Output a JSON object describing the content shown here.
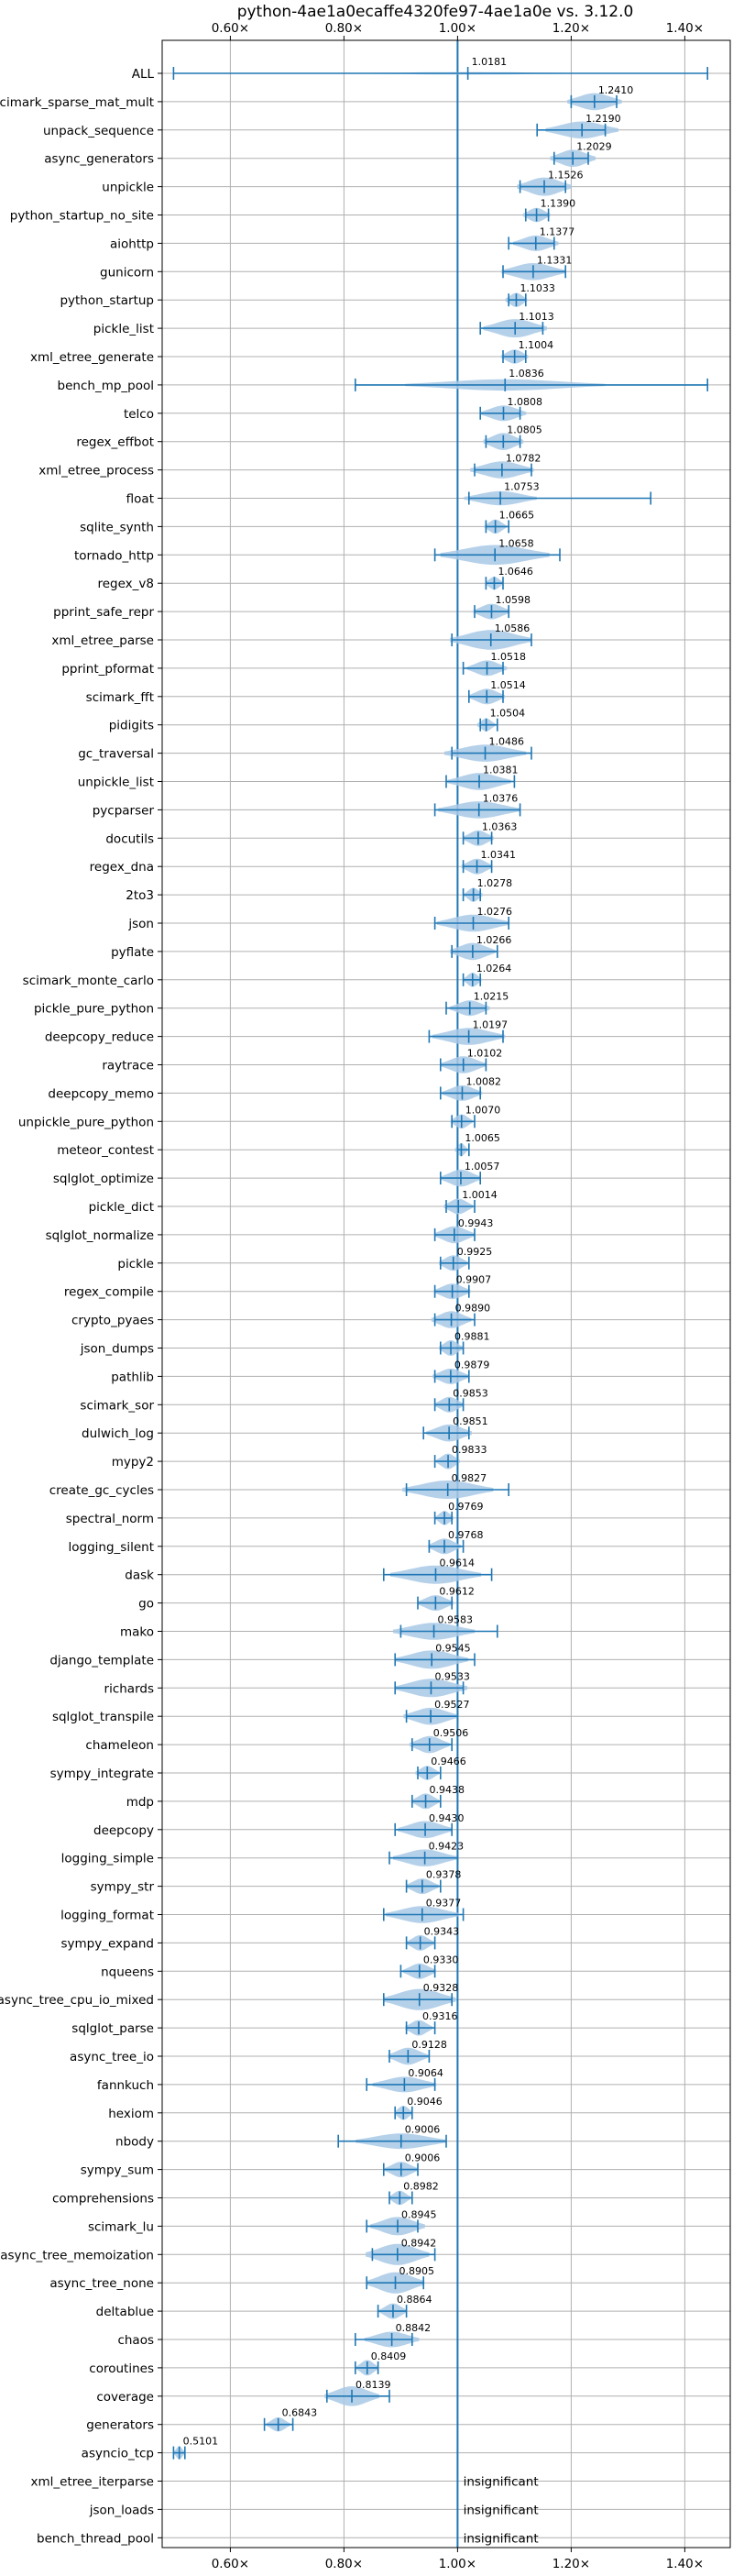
{
  "chart_data": {
    "type": "violin",
    "title": "python-4ae1a0ecaffe4320fe97-4ae1a0e vs. 3.12.0",
    "xlabel": "",
    "ylabel": "",
    "xlim": [
      0.48,
      1.48
    ],
    "xticks": [
      0.6,
      0.8,
      1.0,
      1.2,
      1.4
    ],
    "xtick_labels": [
      "0.60×",
      "0.80×",
      "1.00×",
      "1.20×",
      "1.40×"
    ],
    "tick_labels_on": [
      "top",
      "bottom"
    ],
    "grid": true,
    "reference_line": 1.0,
    "colors": {
      "line": "#1f77b4",
      "fill": "#a8c9e6",
      "grid": "#b0b0b0"
    },
    "insignificant_label": "insignificant",
    "rows": [
      {
        "name": "ALL",
        "value": 1.0181,
        "label": "1.0181",
        "min": 0.5,
        "max": 1.44,
        "width": 0.09,
        "spread": 0.13
      },
      {
        "name": "scimark_sparse_mat_mult",
        "value": 1.241,
        "label": "1.2410",
        "min": 1.2,
        "max": 1.28,
        "width": 0.6,
        "spread": 0.03
      },
      {
        "name": "unpack_sequence",
        "value": 1.219,
        "label": "1.2190",
        "min": 1.14,
        "max": 1.26,
        "width": 0.6,
        "spread": 0.04
      },
      {
        "name": "async_generators",
        "value": 1.2029,
        "label": "1.2029",
        "min": 1.17,
        "max": 1.23,
        "width": 0.6,
        "spread": 0.025
      },
      {
        "name": "unpickle",
        "value": 1.1526,
        "label": "1.1526",
        "min": 1.11,
        "max": 1.19,
        "width": 0.65,
        "spread": 0.03
      },
      {
        "name": "python_startup_no_site",
        "value": 1.139,
        "label": "1.1390",
        "min": 1.12,
        "max": 1.16,
        "width": 0.5,
        "spread": 0.015
      },
      {
        "name": "aiohttp",
        "value": 1.1377,
        "label": "1.1377",
        "min": 1.09,
        "max": 1.17,
        "width": 0.55,
        "spread": 0.025
      },
      {
        "name": "gunicorn",
        "value": 1.1331,
        "label": "1.1331",
        "min": 1.08,
        "max": 1.19,
        "width": 0.6,
        "spread": 0.035
      },
      {
        "name": "python_startup",
        "value": 1.1033,
        "label": "1.1033",
        "min": 1.09,
        "max": 1.12,
        "width": 0.5,
        "spread": 0.012
      },
      {
        "name": "pickle_list",
        "value": 1.1013,
        "label": "1.1013",
        "min": 1.04,
        "max": 1.15,
        "width": 0.65,
        "spread": 0.035
      },
      {
        "name": "xml_etree_generate",
        "value": 1.1004,
        "label": "1.1004",
        "min": 1.08,
        "max": 1.12,
        "width": 0.5,
        "spread": 0.015
      },
      {
        "name": "bench_mp_pool",
        "value": 1.0836,
        "label": "1.0836",
        "min": 0.82,
        "max": 1.44,
        "width": 0.4,
        "spread": 0.11
      },
      {
        "name": "telco",
        "value": 1.0808,
        "label": "1.0808",
        "min": 1.04,
        "max": 1.11,
        "width": 0.55,
        "spread": 0.025
      },
      {
        "name": "regex_effbot",
        "value": 1.0805,
        "label": "1.0805",
        "min": 1.05,
        "max": 1.11,
        "width": 0.6,
        "spread": 0.022
      },
      {
        "name": "xml_etree_process",
        "value": 1.0782,
        "label": "1.0782",
        "min": 1.03,
        "max": 1.13,
        "width": 0.6,
        "spread": 0.035
      },
      {
        "name": "float",
        "value": 1.0753,
        "label": "1.0753",
        "min": 1.02,
        "max": 1.34,
        "width": 0.5,
        "spread": 0.04
      },
      {
        "name": "sqlite_synth",
        "value": 1.0665,
        "label": "1.0665",
        "min": 1.05,
        "max": 1.09,
        "width": 0.5,
        "spread": 0.012
      },
      {
        "name": "tornado_http",
        "value": 1.0658,
        "label": "1.0658",
        "min": 0.96,
        "max": 1.18,
        "width": 0.7,
        "spread": 0.06
      },
      {
        "name": "regex_v8",
        "value": 1.0646,
        "label": "1.0646",
        "min": 1.05,
        "max": 1.08,
        "width": 0.45,
        "spread": 0.01
      },
      {
        "name": "pprint_safe_repr",
        "value": 1.0598,
        "label": "1.0598",
        "min": 1.03,
        "max": 1.09,
        "width": 0.55,
        "spread": 0.02
      },
      {
        "name": "xml_etree_parse",
        "value": 1.0586,
        "label": "1.0586",
        "min": 0.99,
        "max": 1.13,
        "width": 0.7,
        "spread": 0.045
      },
      {
        "name": "pprint_pformat",
        "value": 1.0518,
        "label": "1.0518",
        "min": 1.01,
        "max": 1.08,
        "width": 0.55,
        "spread": 0.022
      },
      {
        "name": "scimark_fft",
        "value": 1.0514,
        "label": "1.0514",
        "min": 1.02,
        "max": 1.08,
        "width": 0.55,
        "spread": 0.02
      },
      {
        "name": "pidigits",
        "value": 1.0504,
        "label": "1.0504",
        "min": 1.04,
        "max": 1.07,
        "width": 0.45,
        "spread": 0.01
      },
      {
        "name": "gc_traversal",
        "value": 1.0486,
        "label": "1.0486",
        "min": 0.99,
        "max": 1.13,
        "width": 0.6,
        "spread": 0.045
      },
      {
        "name": "unpickle_list",
        "value": 1.0381,
        "label": "1.0381",
        "min": 0.98,
        "max": 1.1,
        "width": 0.6,
        "spread": 0.035
      },
      {
        "name": "pycparser",
        "value": 1.0376,
        "label": "1.0376",
        "min": 0.96,
        "max": 1.11,
        "width": 0.6,
        "spread": 0.045
      },
      {
        "name": "docutils",
        "value": 1.0363,
        "label": "1.0363",
        "min": 1.01,
        "max": 1.06,
        "width": 0.55,
        "spread": 0.017
      },
      {
        "name": "regex_dna",
        "value": 1.0341,
        "label": "1.0341",
        "min": 1.01,
        "max": 1.06,
        "width": 0.55,
        "spread": 0.017
      },
      {
        "name": "2to3",
        "value": 1.0278,
        "label": "1.0278",
        "min": 1.01,
        "max": 1.04,
        "width": 0.5,
        "spread": 0.01
      },
      {
        "name": "json",
        "value": 1.0276,
        "label": "1.0276",
        "min": 0.96,
        "max": 1.09,
        "width": 0.6,
        "spread": 0.04
      },
      {
        "name": "pyflate",
        "value": 1.0266,
        "label": "1.0266",
        "min": 0.99,
        "max": 1.07,
        "width": 0.6,
        "spread": 0.025
      },
      {
        "name": "scimark_monte_carlo",
        "value": 1.0264,
        "label": "1.0264",
        "min": 1.01,
        "max": 1.04,
        "width": 0.5,
        "spread": 0.01
      },
      {
        "name": "pickle_pure_python",
        "value": 1.0215,
        "label": "1.0215",
        "min": 0.98,
        "max": 1.05,
        "width": 0.55,
        "spread": 0.022
      },
      {
        "name": "deepcopy_reduce",
        "value": 1.0197,
        "label": "1.0197",
        "min": 0.95,
        "max": 1.08,
        "width": 0.6,
        "spread": 0.04
      },
      {
        "name": "raytrace",
        "value": 1.0102,
        "label": "1.0102",
        "min": 0.97,
        "max": 1.05,
        "width": 0.6,
        "spread": 0.025
      },
      {
        "name": "deepcopy_memo",
        "value": 1.0082,
        "label": "1.0082",
        "min": 0.97,
        "max": 1.04,
        "width": 0.55,
        "spread": 0.022
      },
      {
        "name": "unpickle_pure_python",
        "value": 1.007,
        "label": "1.0070",
        "min": 0.99,
        "max": 1.03,
        "width": 0.5,
        "spread": 0.012
      },
      {
        "name": "meteor_contest",
        "value": 1.0065,
        "label": "1.0065",
        "min": 1.0,
        "max": 1.02,
        "width": 0.45,
        "spread": 0.007
      },
      {
        "name": "sqlglot_optimize",
        "value": 1.0057,
        "label": "1.0057",
        "min": 0.97,
        "max": 1.04,
        "width": 0.6,
        "spread": 0.022
      },
      {
        "name": "pickle_dict",
        "value": 1.0014,
        "label": "1.0014",
        "min": 0.98,
        "max": 1.03,
        "width": 0.55,
        "spread": 0.016
      },
      {
        "name": "sqlglot_normalize",
        "value": 0.9943,
        "label": "0.9943",
        "min": 0.96,
        "max": 1.03,
        "width": 0.6,
        "spread": 0.022
      },
      {
        "name": "pickle",
        "value": 0.9925,
        "label": "0.9925",
        "min": 0.97,
        "max": 1.02,
        "width": 0.55,
        "spread": 0.016
      },
      {
        "name": "regex_compile",
        "value": 0.9907,
        "label": "0.9907",
        "min": 0.96,
        "max": 1.02,
        "width": 0.55,
        "spread": 0.02
      },
      {
        "name": "crypto_pyaes",
        "value": 0.989,
        "label": "0.9890",
        "min": 0.96,
        "max": 1.03,
        "width": 0.6,
        "spread": 0.022
      },
      {
        "name": "json_dumps",
        "value": 0.9881,
        "label": "0.9881",
        "min": 0.97,
        "max": 1.01,
        "width": 0.55,
        "spread": 0.013
      },
      {
        "name": "pathlib",
        "value": 0.9879,
        "label": "0.9879",
        "min": 0.96,
        "max": 1.02,
        "width": 0.55,
        "spread": 0.02
      },
      {
        "name": "scimark_sor",
        "value": 0.9853,
        "label": "0.9853",
        "min": 0.96,
        "max": 1.01,
        "width": 0.55,
        "spread": 0.016
      },
      {
        "name": "dulwich_log",
        "value": 0.9851,
        "label": "0.9851",
        "min": 0.94,
        "max": 1.02,
        "width": 0.6,
        "spread": 0.025
      },
      {
        "name": "mypy2",
        "value": 0.9833,
        "label": "0.9833",
        "min": 0.96,
        "max": 1.0,
        "width": 0.55,
        "spread": 0.013
      },
      {
        "name": "create_gc_cycles",
        "value": 0.9827,
        "label": "0.9827",
        "min": 0.91,
        "max": 1.09,
        "width": 0.65,
        "spread": 0.05
      },
      {
        "name": "spectral_norm",
        "value": 0.9769,
        "label": "0.9769",
        "min": 0.96,
        "max": 0.99,
        "width": 0.5,
        "spread": 0.01
      },
      {
        "name": "logging_silent",
        "value": 0.9768,
        "label": "0.9768",
        "min": 0.95,
        "max": 1.01,
        "width": 0.55,
        "spread": 0.018
      },
      {
        "name": "dask",
        "value": 0.9614,
        "label": "0.9614",
        "min": 0.87,
        "max": 1.06,
        "width": 0.65,
        "spread": 0.05
      },
      {
        "name": "go",
        "value": 0.9612,
        "label": "0.9612",
        "min": 0.93,
        "max": 0.99,
        "width": 0.55,
        "spread": 0.02
      },
      {
        "name": "mako",
        "value": 0.9583,
        "label": "0.9583",
        "min": 0.9,
        "max": 1.07,
        "width": 0.6,
        "spread": 0.045
      },
      {
        "name": "django_template",
        "value": 0.9545,
        "label": "0.9545",
        "min": 0.89,
        "max": 1.03,
        "width": 0.65,
        "spread": 0.04
      },
      {
        "name": "richards",
        "value": 0.9533,
        "label": "0.9533",
        "min": 0.89,
        "max": 1.01,
        "width": 0.65,
        "spread": 0.04
      },
      {
        "name": "sqlglot_transpile",
        "value": 0.9527,
        "label": "0.9527",
        "min": 0.91,
        "max": 1.0,
        "width": 0.6,
        "spread": 0.03
      },
      {
        "name": "chameleon",
        "value": 0.9506,
        "label": "0.9506",
        "min": 0.92,
        "max": 0.99,
        "width": 0.6,
        "spread": 0.022
      },
      {
        "name": "sympy_integrate",
        "value": 0.9466,
        "label": "0.9466",
        "min": 0.93,
        "max": 0.97,
        "width": 0.5,
        "spread": 0.013
      },
      {
        "name": "mdp",
        "value": 0.9438,
        "label": "0.9438",
        "min": 0.92,
        "max": 0.97,
        "width": 0.55,
        "spread": 0.015
      },
      {
        "name": "deepcopy",
        "value": 0.943,
        "label": "0.9430",
        "min": 0.89,
        "max": 0.99,
        "width": 0.6,
        "spread": 0.03
      },
      {
        "name": "logging_simple",
        "value": 0.9423,
        "label": "0.9423",
        "min": 0.88,
        "max": 1.0,
        "width": 0.6,
        "spread": 0.035
      },
      {
        "name": "sympy_str",
        "value": 0.9378,
        "label": "0.9378",
        "min": 0.91,
        "max": 0.97,
        "width": 0.55,
        "spread": 0.018
      },
      {
        "name": "logging_format",
        "value": 0.9377,
        "label": "0.9377",
        "min": 0.87,
        "max": 1.01,
        "width": 0.6,
        "spread": 0.04
      },
      {
        "name": "sympy_expand",
        "value": 0.9343,
        "label": "0.9343",
        "min": 0.91,
        "max": 0.96,
        "width": 0.55,
        "spread": 0.015
      },
      {
        "name": "nqueens",
        "value": 0.933,
        "label": "0.9330",
        "min": 0.9,
        "max": 0.96,
        "width": 0.55,
        "spread": 0.018
      },
      {
        "name": "async_tree_cpu_io_mixed",
        "value": 0.9328,
        "label": "0.9328",
        "min": 0.87,
        "max": 0.99,
        "width": 0.75,
        "spread": 0.04
      },
      {
        "name": "sqlglot_parse",
        "value": 0.9316,
        "label": "0.9316",
        "min": 0.91,
        "max": 0.96,
        "width": 0.55,
        "spread": 0.015
      },
      {
        "name": "async_tree_io",
        "value": 0.9128,
        "label": "0.9128",
        "min": 0.88,
        "max": 0.95,
        "width": 0.6,
        "spread": 0.022
      },
      {
        "name": "fannkuch",
        "value": 0.9064,
        "label": "0.9064",
        "min": 0.84,
        "max": 0.96,
        "width": 0.55,
        "spread": 0.035
      },
      {
        "name": "hexiom",
        "value": 0.9046,
        "label": "0.9046",
        "min": 0.89,
        "max": 0.92,
        "width": 0.5,
        "spread": 0.01
      },
      {
        "name": "nbody",
        "value": 0.9006,
        "label": "0.9006",
        "min": 0.79,
        "max": 0.98,
        "width": 0.55,
        "spread": 0.05
      },
      {
        "name": "sympy_sum",
        "value": 0.9006,
        "label": "0.9006",
        "min": 0.87,
        "max": 0.93,
        "width": 0.55,
        "spread": 0.018
      },
      {
        "name": "comprehensions",
        "value": 0.8982,
        "label": "0.8982",
        "min": 0.88,
        "max": 0.92,
        "width": 0.5,
        "spread": 0.012
      },
      {
        "name": "scimark_lu",
        "value": 0.8945,
        "label": "0.8945",
        "min": 0.84,
        "max": 0.93,
        "width": 0.65,
        "spread": 0.03
      },
      {
        "name": "async_tree_memoization",
        "value": 0.8942,
        "label": "0.8942",
        "min": 0.85,
        "max": 0.96,
        "width": 0.75,
        "spread": 0.035
      },
      {
        "name": "async_tree_none",
        "value": 0.8905,
        "label": "0.8905",
        "min": 0.84,
        "max": 0.94,
        "width": 0.75,
        "spread": 0.032
      },
      {
        "name": "deltablue",
        "value": 0.8864,
        "label": "0.8864",
        "min": 0.86,
        "max": 0.91,
        "width": 0.55,
        "spread": 0.015
      },
      {
        "name": "chaos",
        "value": 0.8842,
        "label": "0.8842",
        "min": 0.82,
        "max": 0.92,
        "width": 0.55,
        "spread": 0.03
      },
      {
        "name": "coroutines",
        "value": 0.8409,
        "label": "0.8409",
        "min": 0.82,
        "max": 0.86,
        "width": 0.55,
        "spread": 0.012
      },
      {
        "name": "coverage",
        "value": 0.8139,
        "label": "0.8139",
        "min": 0.77,
        "max": 0.88,
        "width": 0.7,
        "spread": 0.03
      },
      {
        "name": "generators",
        "value": 0.6843,
        "label": "0.6843",
        "min": 0.66,
        "max": 0.71,
        "width": 0.5,
        "spread": 0.013
      },
      {
        "name": "asyncio_tcp",
        "value": 0.5101,
        "label": "0.5101",
        "min": 0.5,
        "max": 0.52,
        "width": 0.45,
        "spread": 0.006
      },
      {
        "name": "xml_etree_iterparse",
        "insignificant": true
      },
      {
        "name": "json_loads",
        "insignificant": true
      },
      {
        "name": "bench_thread_pool",
        "insignificant": true
      }
    ]
  }
}
